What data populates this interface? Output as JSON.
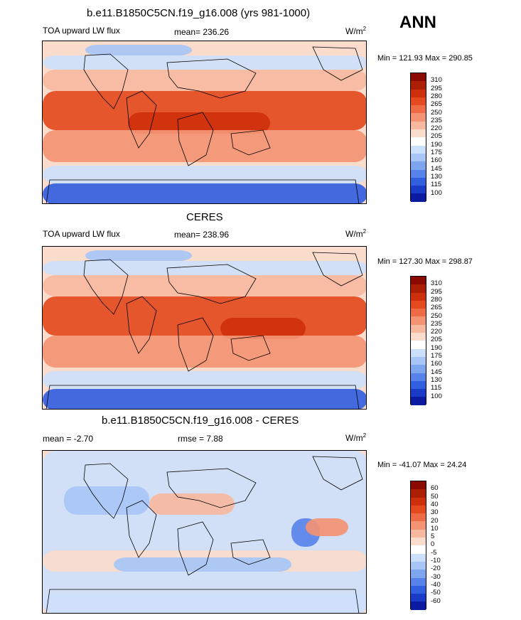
{
  "season": "ANN",
  "panels": [
    {
      "title": "b.e11.B1850C5CN.f19_g16.008 (yrs 981-1000)",
      "left_label": "TOA upward LW flux",
      "center_label": "mean= 236.26",
      "units": "W/m",
      "units_sup": "2",
      "minmax": "Min = 121.93 Max = 290.85",
      "levels": [
        "310",
        "295",
        "280",
        "265",
        "250",
        "235",
        "220",
        "205",
        "190",
        "175",
        "160",
        "145",
        "130",
        "115",
        "100"
      ],
      "colors": [
        "#8b0a00",
        "#ac1f04",
        "#cf300c",
        "#e44a1e",
        "#ee6b46",
        "#f39373",
        "#f6b9a0",
        "#fadccc",
        "#ffffff",
        "#cde0fb",
        "#a7c5f6",
        "#7ea6ef",
        "#5883ea",
        "#325fe0",
        "#1a3ac8",
        "#0a1ba0",
        "#020a6e"
      ]
    },
    {
      "title": "CERES",
      "left_label": "TOA upward LW flux",
      "center_label": "mean= 238.96",
      "units": "W/m",
      "units_sup": "2",
      "minmax": "Min = 127.30 Max = 298.87",
      "levels": [
        "310",
        "295",
        "280",
        "265",
        "250",
        "235",
        "220",
        "205",
        "190",
        "175",
        "160",
        "145",
        "130",
        "115",
        "100"
      ],
      "colors": [
        "#8b0a00",
        "#ac1f04",
        "#cf300c",
        "#e44a1e",
        "#ee6b46",
        "#f39373",
        "#f6b9a0",
        "#fadccc",
        "#ffffff",
        "#cde0fb",
        "#a7c5f6",
        "#7ea6ef",
        "#5883ea",
        "#325fe0",
        "#1a3ac8",
        "#0a1ba0",
        "#020a6e"
      ]
    },
    {
      "title": "b.e11.B1850C5CN.f19_g16.008 - CERES",
      "left_label": "mean =  -2.70",
      "center_label": "rmse =   7.88",
      "units": "W/m",
      "units_sup": "2",
      "minmax": "Min = -41.07 Max =  24.24",
      "levels": [
        "60",
        "50",
        "40",
        "30",
        "20",
        "10",
        "5",
        "0",
        "-5",
        "-10",
        "-20",
        "-30",
        "-40",
        "-50",
        "-60"
      ],
      "colors": [
        "#8b0a00",
        "#ac1f04",
        "#cf300c",
        "#e44a1e",
        "#ee6b46",
        "#f39373",
        "#f6b9a0",
        "#fadccc",
        "#ffffff",
        "#cde0fb",
        "#a7c5f6",
        "#7ea6ef",
        "#5883ea",
        "#325fe0",
        "#1a3ac8",
        "#0a1ba0",
        "#020a6e"
      ]
    }
  ],
  "chart_data": {
    "type": "heatmap",
    "variable": "TOA upward LW flux",
    "season": "ANN",
    "series": [
      {
        "name": "b.e11.B1850C5CN.f19_g16.008 (yrs 981-1000)",
        "mean": 236.26,
        "min": 121.93,
        "max": 290.85,
        "units": "W/m2"
      },
      {
        "name": "CERES",
        "mean": 238.96,
        "min": 127.3,
        "max": 298.87,
        "units": "W/m2"
      },
      {
        "name": "b.e11.B1850C5CN.f19_g16.008 - CERES",
        "mean": -2.7,
        "rmse": 7.88,
        "min": -41.07,
        "max": 24.24,
        "units": "W/m2"
      }
    ]
  }
}
